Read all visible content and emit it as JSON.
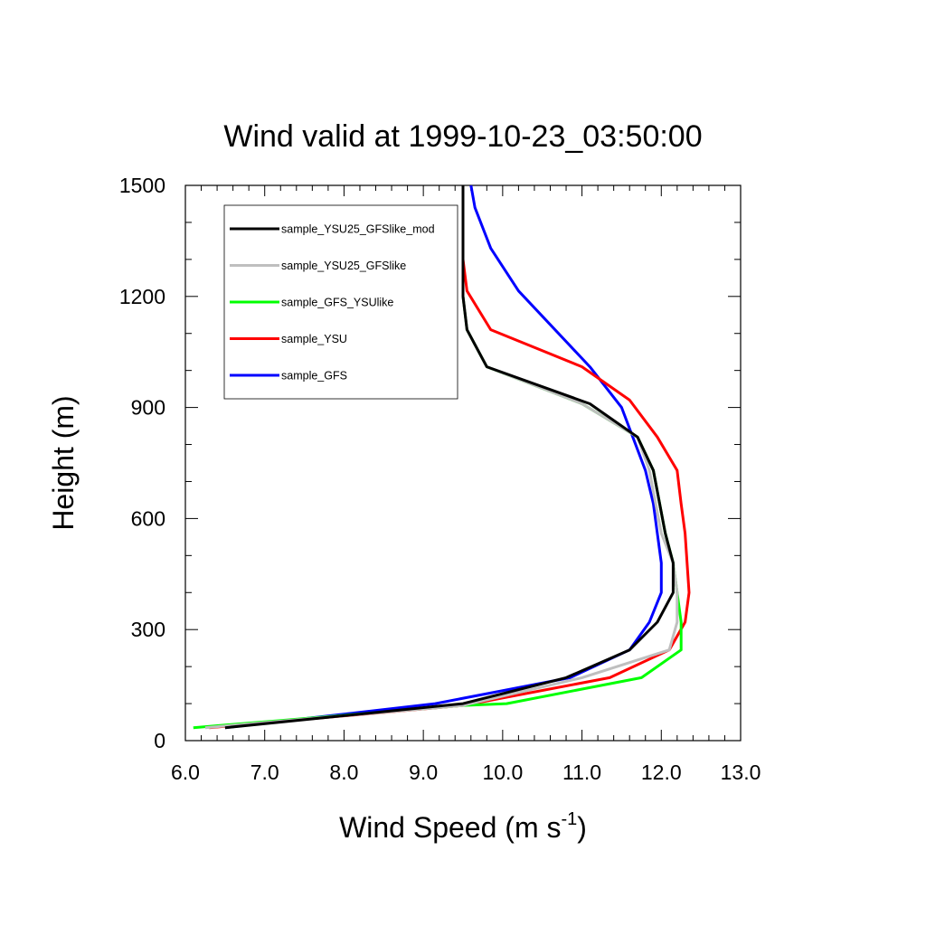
{
  "chart_data": {
    "type": "line",
    "title": "Wind valid at 1999-10-23_03:50:00",
    "xlabel": "Wind Speed (m s",
    "xlabel_sup": "-1",
    "xlabel_end": ")",
    "ylabel": "Height (m)",
    "xlim": [
      6.0,
      13.0
    ],
    "ylim": [
      0,
      1500
    ],
    "xticks": [
      6.0,
      7.0,
      8.0,
      9.0,
      10.0,
      11.0,
      12.0,
      13.0
    ],
    "xtick_labels": [
      "6.0",
      "7.0",
      "8.0",
      "9.0",
      "10.0",
      "11.0",
      "12.0",
      "13.0"
    ],
    "yticks": [
      0,
      300,
      600,
      900,
      1200,
      1500
    ],
    "ytick_labels": [
      "0",
      "300",
      "600",
      "900",
      "1200",
      "1500"
    ],
    "grid": false,
    "legend_position": "top-left",
    "series": [
      {
        "name": "sample_YSU25_GFSlike_mod",
        "color": "#000000",
        "points": [
          [
            6.5,
            35
          ],
          [
            9.5,
            100
          ],
          [
            10.8,
            170
          ],
          [
            11.6,
            245
          ],
          [
            11.95,
            320
          ],
          [
            12.15,
            400
          ],
          [
            12.15,
            480
          ],
          [
            12.05,
            560
          ],
          [
            11.9,
            730
          ],
          [
            11.7,
            820
          ],
          [
            11.1,
            910
          ],
          [
            9.8,
            1010
          ],
          [
            9.55,
            1110
          ],
          [
            9.5,
            1200
          ],
          [
            9.5,
            1300
          ],
          [
            9.5,
            1500
          ]
        ]
      },
      {
        "name": "sample_YSU25_GFSlike",
        "color": "#bfbfbf",
        "points": [
          [
            6.25,
            35
          ],
          [
            9.5,
            95
          ],
          [
            11.0,
            170
          ],
          [
            12.1,
            245
          ],
          [
            12.2,
            320
          ],
          [
            12.2,
            400
          ],
          [
            12.15,
            480
          ],
          [
            12.0,
            560
          ],
          [
            11.85,
            730
          ],
          [
            11.7,
            820
          ],
          [
            11.0,
            910
          ],
          [
            9.8,
            1010
          ],
          [
            9.55,
            1110
          ],
          [
            9.5,
            1200
          ],
          [
            9.5,
            1300
          ],
          [
            9.5,
            1500
          ]
        ]
      },
      {
        "name": "sample_GFS_YSUlike",
        "color": "#00ff00",
        "points": [
          [
            6.1,
            35
          ],
          [
            9.5,
            95
          ],
          [
            10.05,
            100
          ],
          [
            11.75,
            170
          ],
          [
            12.25,
            245
          ],
          [
            12.25,
            320
          ],
          [
            12.2,
            400
          ],
          [
            12.15,
            480
          ],
          [
            12.05,
            560
          ],
          [
            11.9,
            730
          ],
          [
            11.7,
            820
          ],
          [
            11.0,
            910
          ],
          [
            9.8,
            1010
          ],
          [
            9.55,
            1110
          ],
          [
            9.5,
            1200
          ],
          [
            9.5,
            1300
          ],
          [
            9.5,
            1500
          ]
        ]
      },
      {
        "name": "sample_YSU",
        "color": "#ff0000",
        "points": [
          [
            6.3,
            35
          ],
          [
            9.5,
            95
          ],
          [
            11.35,
            170
          ],
          [
            12.1,
            245
          ],
          [
            12.3,
            320
          ],
          [
            12.35,
            400
          ],
          [
            12.3,
            560
          ],
          [
            12.25,
            640
          ],
          [
            12.2,
            730
          ],
          [
            11.95,
            820
          ],
          [
            11.6,
            920
          ],
          [
            11.0,
            1010
          ],
          [
            9.85,
            1110
          ],
          [
            9.55,
            1215
          ],
          [
            9.5,
            1300
          ],
          [
            9.5,
            1500
          ]
        ]
      },
      {
        "name": "sample_GFS",
        "color": "#0000ff",
        "points": [
          [
            6.5,
            35
          ],
          [
            9.15,
            100
          ],
          [
            10.85,
            170
          ],
          [
            11.6,
            245
          ],
          [
            11.85,
            320
          ],
          [
            12.0,
            400
          ],
          [
            12.0,
            480
          ],
          [
            11.95,
            560
          ],
          [
            11.9,
            640
          ],
          [
            11.8,
            730
          ],
          [
            11.5,
            900
          ],
          [
            11.1,
            1010
          ],
          [
            10.2,
            1215
          ],
          [
            9.85,
            1330
          ],
          [
            9.65,
            1440
          ],
          [
            9.6,
            1500
          ]
        ]
      }
    ]
  }
}
